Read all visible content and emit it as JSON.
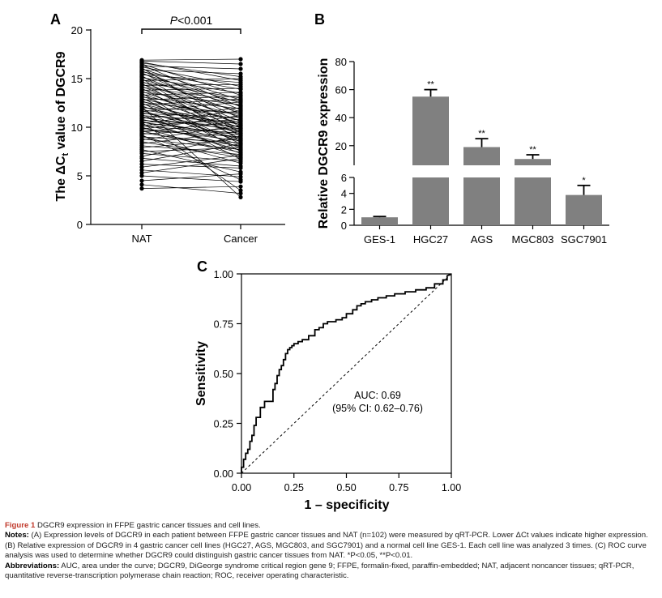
{
  "panels": {
    "a": {
      "label": "A"
    },
    "b": {
      "label": "B"
    },
    "c": {
      "label": "C"
    }
  },
  "chart_data": [
    {
      "type": "line",
      "panel": "A",
      "title": "",
      "ylabel": "The ΔCt value of DGCR9",
      "categories": [
        "NAT",
        "Cancer"
      ],
      "ylim": [
        0,
        20
      ],
      "yticks": [
        0,
        5,
        10,
        15,
        20
      ],
      "annotation": "P<0.001",
      "pairs": [
        [
          3.7,
          3.9
        ],
        [
          4.1,
          3.2
        ],
        [
          4.5,
          5.2
        ],
        [
          5.0,
          4.4
        ],
        [
          5.3,
          6.8
        ],
        [
          5.6,
          4.9
        ],
        [
          5.9,
          7.1
        ],
        [
          6.2,
          5.8
        ],
        [
          6.5,
          8.3
        ],
        [
          6.8,
          6.0
        ],
        [
          7.0,
          9.1
        ],
        [
          7.3,
          6.5
        ],
        [
          7.5,
          7.9
        ],
        [
          7.7,
          5.4
        ],
        [
          7.9,
          8.8
        ],
        [
          8.1,
          7.2
        ],
        [
          8.3,
          9.6
        ],
        [
          8.5,
          6.9
        ],
        [
          8.7,
          10.2
        ],
        [
          8.8,
          7.7
        ],
        [
          9.0,
          8.4
        ],
        [
          9.1,
          6.3
        ],
        [
          9.3,
          9.9
        ],
        [
          9.4,
          8.1
        ],
        [
          9.5,
          10.6
        ],
        [
          9.6,
          7.4
        ],
        [
          9.7,
          9.0
        ],
        [
          9.8,
          11.2
        ],
        [
          9.9,
          8.6
        ],
        [
          10.0,
          7.0
        ],
        [
          10.1,
          9.4
        ],
        [
          10.2,
          10.8
        ],
        [
          10.3,
          8.0
        ],
        [
          10.4,
          11.7
        ],
        [
          10.5,
          9.2
        ],
        [
          10.6,
          7.6
        ],
        [
          10.7,
          10.1
        ],
        [
          10.8,
          8.9
        ],
        [
          10.9,
          12.0
        ],
        [
          11.0,
          9.7
        ],
        [
          11.1,
          8.2
        ],
        [
          11.2,
          10.5
        ],
        [
          11.3,
          7.3
        ],
        [
          11.4,
          11.0
        ],
        [
          11.5,
          9.5
        ],
        [
          11.6,
          12.6
        ],
        [
          11.7,
          8.7
        ],
        [
          11.8,
          10.3
        ],
        [
          11.9,
          6.7
        ],
        [
          12.0,
          11.5
        ],
        [
          12.1,
          9.8
        ],
        [
          12.2,
          8.5
        ],
        [
          12.3,
          12.9
        ],
        [
          12.4,
          10.0
        ],
        [
          12.5,
          7.8
        ],
        [
          12.6,
          11.3
        ],
        [
          12.7,
          9.3
        ],
        [
          12.8,
          13.2
        ],
        [
          12.9,
          10.7
        ],
        [
          13.0,
          8.3
        ],
        [
          13.1,
          11.9
        ],
        [
          13.2,
          9.6
        ],
        [
          13.3,
          13.6
        ],
        [
          13.4,
          10.4
        ],
        [
          13.5,
          7.5
        ],
        [
          13.6,
          12.3
        ],
        [
          13.7,
          9.9
        ],
        [
          13.8,
          14.0
        ],
        [
          13.9,
          11.1
        ],
        [
          14.0,
          8.8
        ],
        [
          14.1,
          12.7
        ],
        [
          14.2,
          10.2
        ],
        [
          14.3,
          14.4
        ],
        [
          14.4,
          11.6
        ],
        [
          14.5,
          9.1
        ],
        [
          14.6,
          13.0
        ],
        [
          14.7,
          10.6
        ],
        [
          14.8,
          15.0
        ],
        [
          14.9,
          12.2
        ],
        [
          15.0,
          8.6
        ],
        [
          15.1,
          13.5
        ],
        [
          15.2,
          11.4
        ],
        [
          15.3,
          9.4
        ],
        [
          15.4,
          14.6
        ],
        [
          15.5,
          12.5
        ],
        [
          15.6,
          10.9
        ],
        [
          15.7,
          13.9
        ],
        [
          15.8,
          11.8
        ],
        [
          15.9,
          15.5
        ],
        [
          16.0,
          12.8
        ],
        [
          16.1,
          10.0
        ],
        [
          16.2,
          14.2
        ],
        [
          16.3,
          16.0
        ],
        [
          16.4,
          12.1
        ],
        [
          16.5,
          13.3
        ],
        [
          16.6,
          15.2
        ],
        [
          16.7,
          14.8
        ],
        [
          16.8,
          16.5
        ],
        [
          16.9,
          17.0
        ],
        [
          12.1,
          2.8
        ],
        [
          10.5,
          3.5
        ],
        [
          9.2,
          4.6
        ]
      ]
    },
    {
      "type": "bar",
      "panel": "B",
      "title": "",
      "ylabel": "Relative DGCR9 expression",
      "categories": [
        "GES-1",
        "HGC27",
        "AGS",
        "MGC803",
        "SGC7901"
      ],
      "values": [
        1.0,
        55,
        19,
        10.5,
        3.8
      ],
      "errors": [
        0.1,
        5,
        6,
        3,
        1.2
      ],
      "significance": [
        "",
        "**",
        "**",
        "**",
        "*"
      ],
      "y_axis_break": {
        "lower_range": [
          0,
          6
        ],
        "upper_range": [
          6,
          80
        ]
      },
      "yticks_lower": [
        0,
        2,
        4,
        6
      ],
      "yticks_upper": [
        20,
        40,
        60,
        80
      ]
    },
    {
      "type": "line",
      "panel": "C",
      "title": "",
      "xlabel": "1 – specificity",
      "ylabel": "Sensitivity",
      "xlim": [
        0,
        1
      ],
      "ylim": [
        0,
        1
      ],
      "ticks": [
        "0.00",
        "0.25",
        "0.50",
        "0.75",
        "1.00"
      ],
      "annotation_line1": "AUC: 0.69",
      "annotation_line2": "(95% CI: 0.62–0.76)",
      "reference_line": "diagonal",
      "roc_x": [
        0,
        0,
        0.01,
        0.01,
        0.02,
        0.02,
        0.03,
        0.03,
        0.04,
        0.04,
        0.05,
        0.05,
        0.06,
        0.06,
        0.07,
        0.07,
        0.09,
        0.09,
        0.11,
        0.11,
        0.13,
        0.13,
        0.15,
        0.15,
        0.16,
        0.16,
        0.17,
        0.17,
        0.18,
        0.18,
        0.19,
        0.19,
        0.2,
        0.2,
        0.21,
        0.21,
        0.22,
        0.22,
        0.23,
        0.23,
        0.24,
        0.24,
        0.25,
        0.25,
        0.27,
        0.27,
        0.29,
        0.29,
        0.32,
        0.32,
        0.35,
        0.35,
        0.37,
        0.37,
        0.39,
        0.39,
        0.41,
        0.41,
        0.45,
        0.45,
        0.48,
        0.48,
        0.5,
        0.5,
        0.53,
        0.53,
        0.55,
        0.55,
        0.57,
        0.57,
        0.59,
        0.59,
        0.62,
        0.62,
        0.65,
        0.65,
        0.69,
        0.69,
        0.73,
        0.73,
        0.78,
        0.78,
        0.83,
        0.83,
        0.88,
        0.88,
        0.92,
        0.92,
        0.96,
        0.96,
        0.98,
        0.98,
        1.0
      ],
      "roc_y": [
        0,
        0.03,
        0.03,
        0.07,
        0.07,
        0.1,
        0.1,
        0.12,
        0.12,
        0.16,
        0.16,
        0.19,
        0.19,
        0.24,
        0.24,
        0.28,
        0.28,
        0.33,
        0.33,
        0.36,
        0.36,
        0.36,
        0.36,
        0.42,
        0.42,
        0.45,
        0.45,
        0.49,
        0.49,
        0.52,
        0.52,
        0.54,
        0.54,
        0.57,
        0.57,
        0.6,
        0.6,
        0.62,
        0.62,
        0.63,
        0.63,
        0.64,
        0.64,
        0.65,
        0.65,
        0.66,
        0.66,
        0.67,
        0.67,
        0.69,
        0.69,
        0.72,
        0.72,
        0.73,
        0.73,
        0.75,
        0.75,
        0.76,
        0.76,
        0.77,
        0.77,
        0.78,
        0.78,
        0.8,
        0.8,
        0.82,
        0.82,
        0.84,
        0.84,
        0.85,
        0.85,
        0.86,
        0.86,
        0.87,
        0.87,
        0.88,
        0.88,
        0.89,
        0.89,
        0.9,
        0.9,
        0.91,
        0.91,
        0.92,
        0.92,
        0.93,
        0.93,
        0.95,
        0.95,
        0.97,
        0.97,
        0.99,
        1.0
      ]
    }
  ],
  "caption": {
    "title_bold": "Figure 1",
    "title_rest": " DGCR9 expression in FFPE gastric cancer tissues and cell lines.",
    "notes_head": "Notes:",
    "notes_text": " (A) Expression levels of DGCR9 in each patient between FFPE gastric cancer tissues and NAT (n=102) were measured by qRT-PCR. Lower ΔCt values indicate higher expression. (B) Relative expression of DGCR9 in 4 gastric cancer cell lines (HGC27, AGS, MGC803, and SGC7901) and a normal cell line GES-1. Each cell line was analyzed 3 times. (C) ROC curve analysis was used to determine whether DGCR9 could distinguish gastric cancer tissues from NAT. *P<0.05, **P<0.01.",
    "abbr_head": "Abbreviations:",
    "abbr_text": " AUC, area under the curve; DGCR9, DiGeorge syndrome critical region gene 9; FFPE, formalin-fixed, paraffin-embedded; NAT, adjacent noncancer tissues; qRT-PCR, quantitative reverse-transcription polymerase chain reaction; ROC, receiver operating characteristic."
  }
}
